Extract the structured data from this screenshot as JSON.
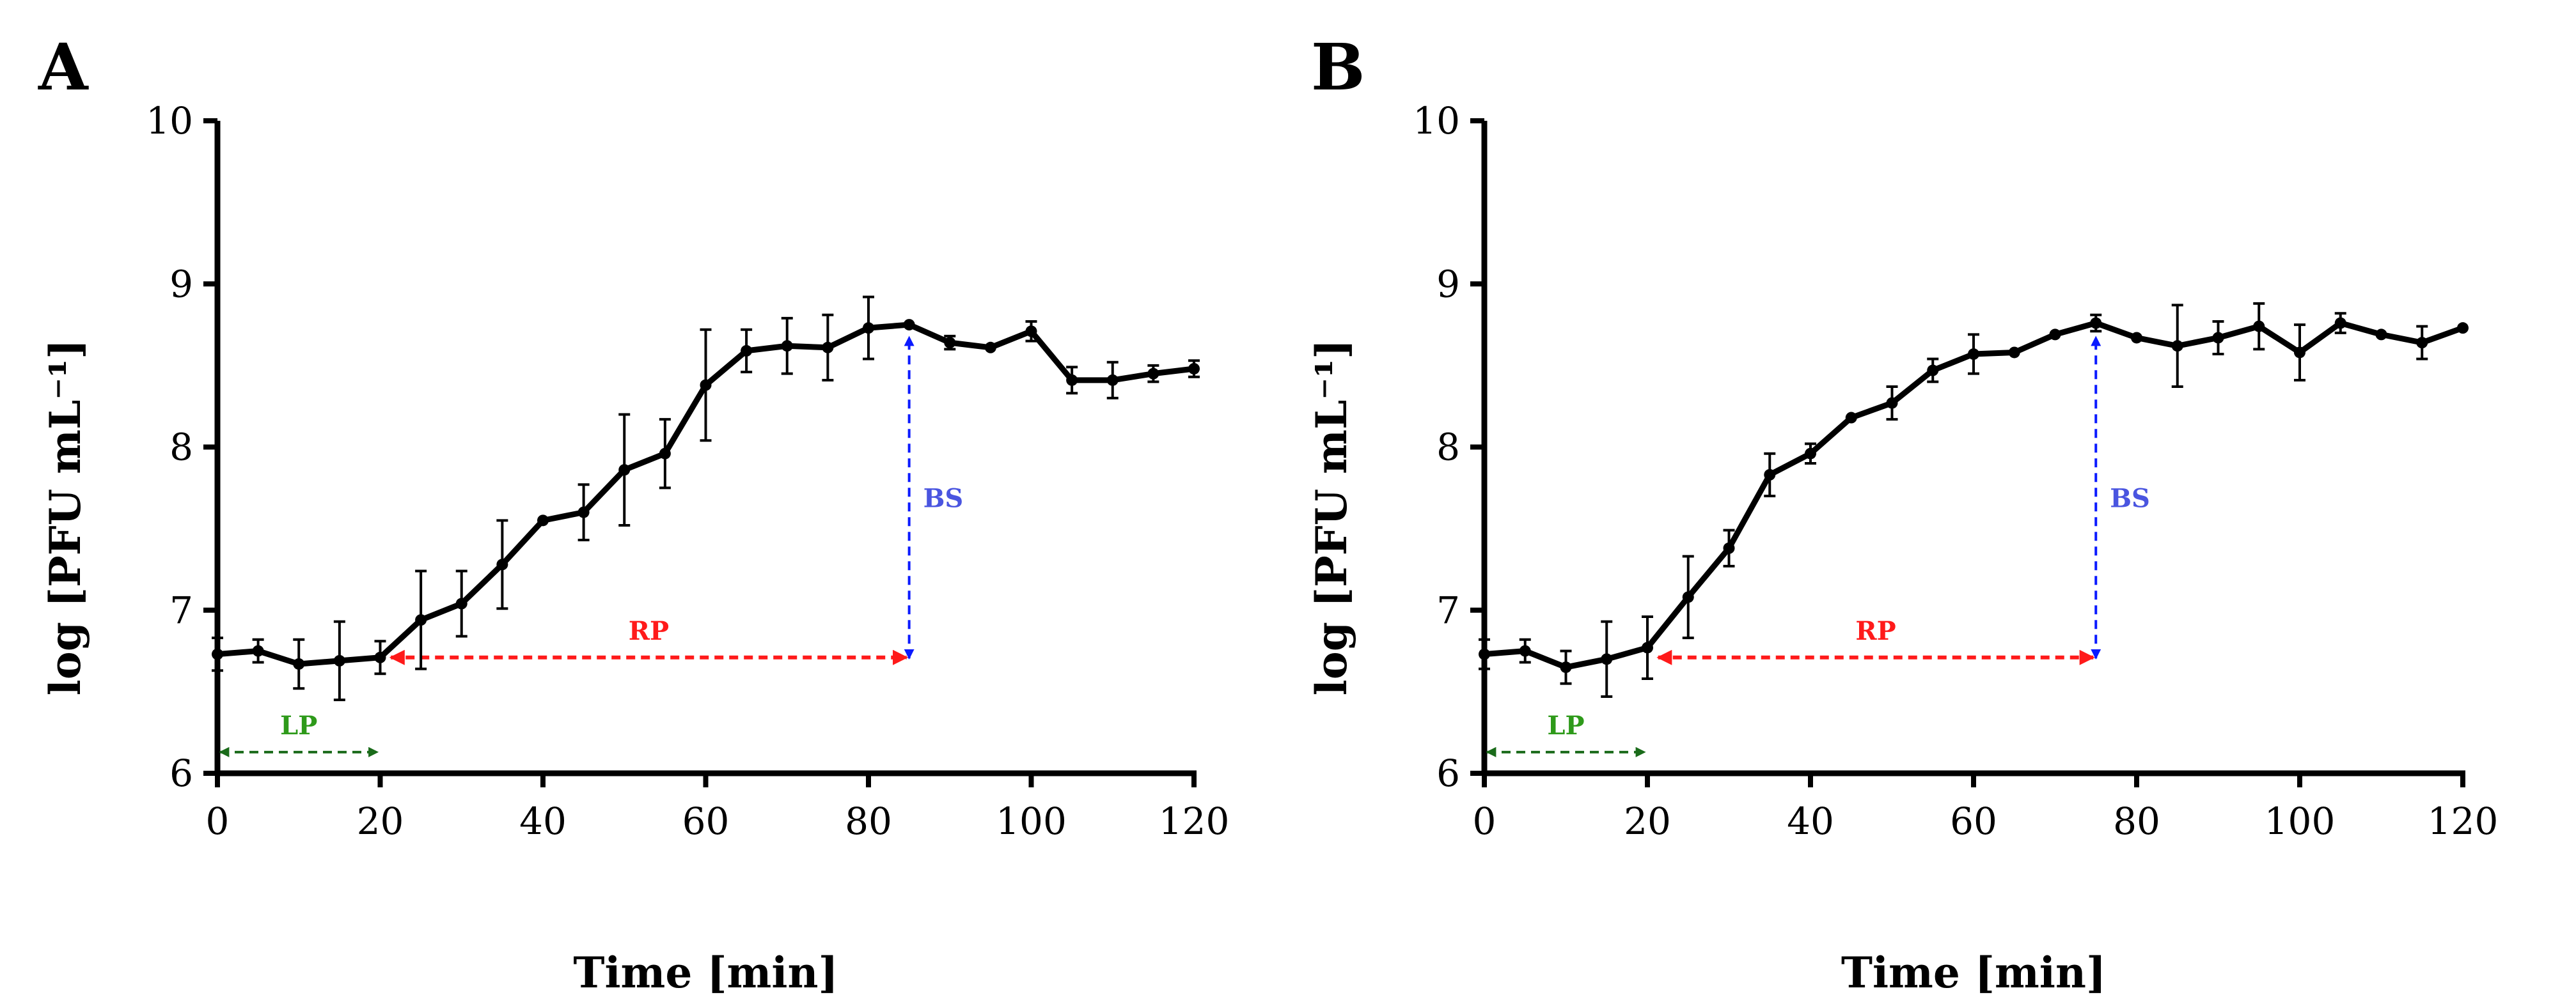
{
  "chart_data": [
    {
      "type": "line",
      "panel_label": "A",
      "xlabel": "Time [min]",
      "ylabel": "log [PFU mL⁻¹]",
      "xlim": [
        0,
        120
      ],
      "ylim": [
        6,
        10
      ],
      "xticks": [
        0,
        20,
        40,
        60,
        80,
        100,
        120
      ],
      "yticks": [
        6,
        7,
        8,
        9,
        10
      ],
      "grid": false,
      "x": [
        0,
        5,
        10,
        15,
        20,
        25,
        30,
        35,
        40,
        45,
        50,
        55,
        60,
        65,
        70,
        75,
        80,
        85,
        90,
        95,
        100,
        105,
        110,
        115,
        120
      ],
      "y": [
        6.73,
        6.75,
        6.67,
        6.69,
        6.71,
        6.94,
        7.04,
        7.28,
        7.55,
        7.6,
        7.86,
        7.96,
        8.38,
        8.59,
        8.62,
        8.61,
        8.73,
        8.75,
        8.64,
        8.61,
        8.71,
        8.41,
        8.41,
        8.45,
        8.48
      ],
      "yerr": [
        0.1,
        0.07,
        0.15,
        0.24,
        0.1,
        0.3,
        0.2,
        0.27,
        0,
        0.17,
        0.34,
        0.21,
        0.34,
        0.13,
        0.17,
        0.2,
        0.19,
        0,
        0.04,
        0,
        0.06,
        0.08,
        0.11,
        0.05,
        0.05
      ],
      "annotations": [
        {
          "label": "LP",
          "kind": "h",
          "from": 0,
          "to": 20,
          "at": 6.13,
          "color": "#1a6b1a",
          "textcolor": "#2e9a1a"
        },
        {
          "label": "RP",
          "kind": "h",
          "from": 21,
          "to": 85,
          "at": 6.71,
          "color": "#ff1a1a",
          "textcolor": "#ff1a1a"
        },
        {
          "label": "BS",
          "kind": "v",
          "from": 6.72,
          "to": 8.66,
          "at": 85,
          "color": "#0b1aff",
          "textcolor": "#4a55e0"
        }
      ]
    },
    {
      "type": "line",
      "panel_label": "B",
      "xlabel": "Time [min]",
      "ylabel": "log [PFU mL⁻¹]",
      "xlim": [
        0,
        120
      ],
      "ylim": [
        6,
        10
      ],
      "xticks": [
        0,
        20,
        40,
        60,
        80,
        100,
        120
      ],
      "yticks": [
        6,
        7,
        8,
        9,
        10
      ],
      "grid": false,
      "x": [
        0,
        5,
        10,
        15,
        20,
        25,
        30,
        35,
        40,
        45,
        50,
        55,
        60,
        65,
        70,
        75,
        80,
        85,
        90,
        95,
        100,
        105,
        110,
        115,
        120
      ],
      "y": [
        6.73,
        6.75,
        6.65,
        6.7,
        6.77,
        7.08,
        7.38,
        7.83,
        7.96,
        8.18,
        8.27,
        8.47,
        8.57,
        8.58,
        8.69,
        8.76,
        8.67,
        8.62,
        8.67,
        8.74,
        8.58,
        8.76,
        8.69,
        8.64,
        8.73
      ],
      "yerr": [
        0.09,
        0.07,
        0.1,
        0.23,
        0.19,
        0.25,
        0.11,
        0.13,
        0.06,
        0,
        0.1,
        0.07,
        0.12,
        0,
        0,
        0.05,
        0,
        0.25,
        0.1,
        0.14,
        0.17,
        0.06,
        0,
        0.1,
        0
      ],
      "annotations": [
        {
          "label": "LP",
          "kind": "h",
          "from": 0,
          "to": 20,
          "at": 6.13,
          "color": "#1a6b1a",
          "textcolor": "#2e9a1a"
        },
        {
          "label": "RP",
          "kind": "h",
          "from": 21,
          "to": 75,
          "at": 6.71,
          "color": "#ff1a1a",
          "textcolor": "#ff1a1a"
        },
        {
          "label": "BS",
          "kind": "v",
          "from": 6.72,
          "to": 8.66,
          "at": 75,
          "color": "#0b1aff",
          "textcolor": "#4a55e0"
        }
      ]
    }
  ]
}
